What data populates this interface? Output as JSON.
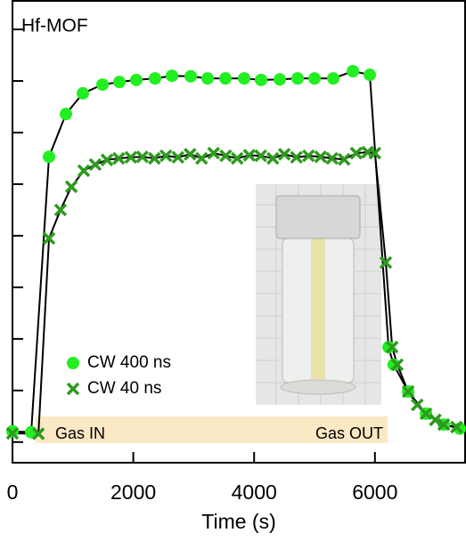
{
  "chart_data": {
    "type": "line",
    "title": "Hf-MOF",
    "x_label": "Time (s)",
    "xlim": [
      0,
      7500
    ],
    "xticks": [
      0,
      2000,
      4000,
      6000
    ],
    "ylim": [
      -0.4,
      8.57
    ],
    "yticks": [
      0,
      1,
      2,
      3,
      4,
      5,
      6,
      7,
      8
    ],
    "annotations": [
      "Gas IN",
      "Gas OUT"
    ],
    "series": [
      {
        "name": "CW 400 ns",
        "color": "#22ee22",
        "marker": "circle",
        "x": [
          0,
          310,
          605,
          885,
          1165,
          1490,
          1770,
          2050,
          2360,
          2640,
          2950,
          3230,
          3525,
          3835,
          4115,
          4425,
          4720,
          5000,
          5310,
          5635,
          5915,
          6225,
          6310,
          6550,
          6845,
          7140,
          7405
        ],
        "values": [
          0.21,
          0.19,
          5.53,
          6.36,
          6.76,
          6.93,
          6.98,
          7.02,
          7.05,
          7.1,
          7.09,
          7.05,
          7.05,
          7.05,
          7.02,
          7.03,
          7.05,
          7.05,
          7.05,
          7.19,
          7.12,
          1.84,
          1.5,
          0.98,
          0.55,
          0.34,
          0.26
        ]
      },
      {
        "name": "CW 40 ns",
        "color": "#2e9a1e",
        "marker": "x",
        "x": [
          0,
          430,
          605,
          795,
          975,
          1180,
          1370,
          1565,
          1760,
          1960,
          2150,
          2350,
          2540,
          2740,
          2940,
          3130,
          3330,
          3530,
          3720,
          3920,
          4110,
          4310,
          4500,
          4700,
          4900,
          5100,
          5290,
          5490,
          5690,
          5880,
          6000,
          6180,
          6285,
          6370,
          6550,
          6700,
          6845,
          7000,
          7140,
          7350
        ],
        "values": [
          0.17,
          0.16,
          3.95,
          4.5,
          4.95,
          5.26,
          5.38,
          5.47,
          5.5,
          5.52,
          5.53,
          5.5,
          5.55,
          5.52,
          5.58,
          5.5,
          5.6,
          5.55,
          5.5,
          5.56,
          5.55,
          5.5,
          5.58,
          5.52,
          5.55,
          5.53,
          5.5,
          5.48,
          5.6,
          5.62,
          5.6,
          3.48,
          1.84,
          1.5,
          0.98,
          0.72,
          0.55,
          0.43,
          0.34,
          0.29
        ]
      }
    ]
  }
}
